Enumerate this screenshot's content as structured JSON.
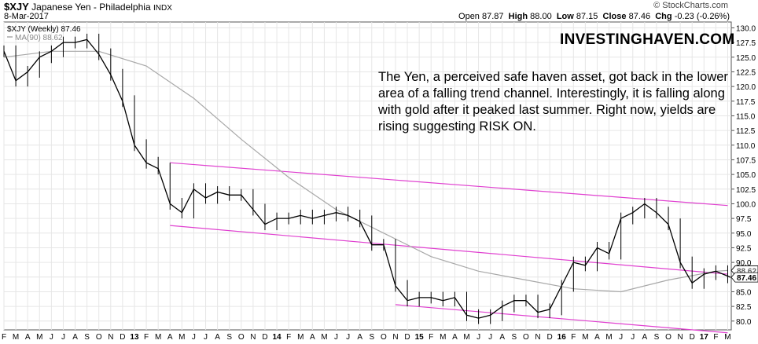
{
  "header": {
    "symbol": "$XJY",
    "name": "Japanese Yen - Philadelphia",
    "exchange": "INDX",
    "date": "8-Mar-2017",
    "copyright": "© StockCharts.com",
    "open_label": "Open",
    "open": "87.87",
    "high_label": "High",
    "high": "88.00",
    "low_label": "Low",
    "low": "87.15",
    "close_label": "Close",
    "close": "87.46",
    "chg_label": "Chg",
    "chg": "-0.23 (-0.26%)"
  },
  "legend": {
    "series_label": "$XJY (Weekly) 87.46",
    "ma_label": "MA(90) 88.62"
  },
  "brand": "INVESTINGHAVEN.COM",
  "annotation": "The Yen, a perceived safe haven asset, got back in the lower area of a falling trend channel. Interestingly, it is falling along with gold after it peaked last summer. Right now, yields are rising suggesting RISK ON.",
  "colors": {
    "price": "#000000",
    "ma": "#a8a8a8",
    "channel": "#e040d0",
    "grid": "#e6e6e6",
    "last_tag": "#ffffff"
  },
  "chart_data": {
    "type": "line",
    "series": [
      {
        "name": "$XJY (Weekly)",
        "x": [
          "2012-02",
          "2012-03",
          "2012-04",
          "2012-05",
          "2012-06",
          "2012-07",
          "2012-08",
          "2012-09",
          "2012-10",
          "2012-11",
          "2012-12",
          "2013-01",
          "2013-02",
          "2013-03",
          "2013-04",
          "2013-05",
          "2013-06",
          "2013-07",
          "2013-08",
          "2013-09",
          "2013-10",
          "2013-11",
          "2013-12",
          "2014-01",
          "2014-02",
          "2014-03",
          "2014-04",
          "2014-05",
          "2014-06",
          "2014-07",
          "2014-08",
          "2014-09",
          "2014-10",
          "2014-11",
          "2014-12",
          "2015-01",
          "2015-02",
          "2015-03",
          "2015-04",
          "2015-05",
          "2015-06",
          "2015-07",
          "2015-08",
          "2015-09",
          "2015-10",
          "2015-11",
          "2015-12",
          "2016-01",
          "2016-02",
          "2016-03",
          "2016-04",
          "2016-05",
          "2016-06",
          "2016-07",
          "2016-08",
          "2016-09",
          "2016-10",
          "2016-11",
          "2016-12",
          "2017-01",
          "2017-02",
          "2017-03"
        ],
        "values": [
          126.0,
          121.0,
          122.5,
          125.0,
          126.0,
          127.5,
          127.5,
          128.0,
          125.5,
          122.0,
          117.5,
          110.0,
          107.0,
          106.0,
          100.0,
          98.5,
          102.5,
          101.0,
          102.0,
          101.5,
          101.5,
          99.0,
          96.5,
          97.5,
          97.5,
          98.0,
          97.5,
          98.0,
          98.5,
          98.0,
          97.0,
          93.0,
          93.0,
          86.0,
          83.5,
          84.0,
          84.0,
          83.5,
          84.0,
          81.0,
          80.5,
          81.0,
          82.5,
          83.5,
          83.5,
          81.5,
          82.0,
          86.0,
          90.0,
          89.5,
          92.5,
          91.5,
          97.5,
          98.5,
          100.0,
          98.5,
          96.5,
          90.0,
          86.5,
          88.0,
          88.5,
          87.46
        ]
      },
      {
        "name": "MA(90)",
        "x": [
          "2012-02",
          "2012-06",
          "2012-10",
          "2013-02",
          "2013-06",
          "2013-10",
          "2014-02",
          "2014-06",
          "2014-10",
          "2015-02",
          "2015-06",
          "2015-10",
          "2016-02",
          "2016-06",
          "2016-10",
          "2017-02",
          "2017-03"
        ],
        "values": [
          125.0,
          126.0,
          126.0,
          123.5,
          118.0,
          111.0,
          104.5,
          99.0,
          95.0,
          91.0,
          88.5,
          87.0,
          85.5,
          85.0,
          87.0,
          88.5,
          88.62
        ]
      }
    ],
    "channel_lines": [
      {
        "x": [
          "2013-04",
          "2017-03"
        ],
        "values": [
          107.0,
          99.7
        ]
      },
      {
        "x": [
          "2013-04",
          "2017-03"
        ],
        "values": [
          96.3,
          88.0
        ]
      },
      {
        "x": [
          "2014-11",
          "2017-03"
        ],
        "values": [
          82.8,
          78.0
        ]
      }
    ],
    "last_value": 87.46,
    "ma_last_value": 88.62,
    "ylim": [
      78.5,
      131.0
    ],
    "y_ticks": [
      80.0,
      82.5,
      85.0,
      87.5,
      90.0,
      92.5,
      95.0,
      97.5,
      100.0,
      102.5,
      105.0,
      107.5,
      110.0,
      112.5,
      115.0,
      117.5,
      120.0,
      122.5,
      125.0,
      127.5,
      130.0
    ],
    "y_tick_labels": [
      "80.0",
      "82.5",
      "85.0",
      "",
      "90.0",
      "92.5",
      "95.0",
      "97.5",
      "100.0",
      "102.5",
      "105.0",
      "107.5",
      "110.0",
      "112.5",
      "115.0",
      "117.5",
      "120.0",
      "122.5",
      "125.0",
      "127.5",
      "130.0"
    ],
    "x_tick_labels": [
      "F",
      "M",
      "A",
      "M",
      "J",
      "J",
      "A",
      "S",
      "O",
      "N",
      "D",
      "13",
      "F",
      "M",
      "A",
      "M",
      "J",
      "J",
      "A",
      "S",
      "O",
      "N",
      "D",
      "14",
      "F",
      "M",
      "A",
      "M",
      "J",
      "J",
      "A",
      "S",
      "O",
      "N",
      "D",
      "15",
      "F",
      "M",
      "A",
      "M",
      "J",
      "J",
      "A",
      "S",
      "O",
      "N",
      "D",
      "16",
      "F",
      "M",
      "A",
      "M",
      "J",
      "J",
      "A",
      "S",
      "O",
      "N",
      "D",
      "17",
      "F",
      "M"
    ],
    "xlabel": "",
    "ylabel": "",
    "grid": true,
    "legend": "top-left"
  }
}
